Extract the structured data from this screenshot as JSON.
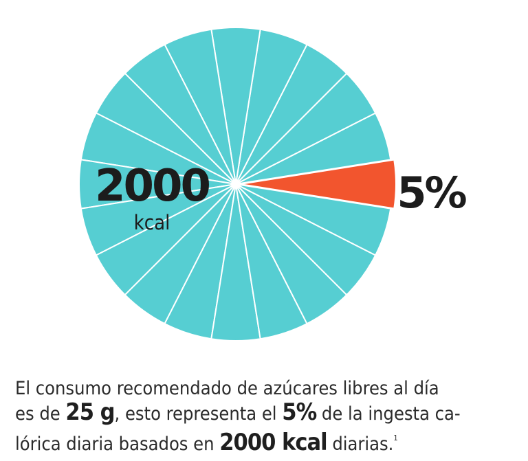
{
  "chart_data": {
    "type": "pie",
    "slices": 20,
    "highlight_index": 0,
    "highlight_share": 0.05,
    "colors": {
      "base": "#56ced2",
      "highlight": "#f2552e",
      "divider": "#ffffff"
    },
    "center_value": "2000",
    "center_unit": "kcal",
    "highlight_label": "5%"
  },
  "caption": {
    "l1": "El consumo recomendado de azúcares libres al día",
    "l2_a": "es de ",
    "l2_b": "25 g",
    "l2_c": ", esto representa el ",
    "l2_d": "5%",
    "l2_e": " de la ingesta ca-",
    "l3_a": "lórica diaria basados en ",
    "l3_b": "2000 kcal",
    "l3_c": " diarias.",
    "l3_sup": "1"
  }
}
